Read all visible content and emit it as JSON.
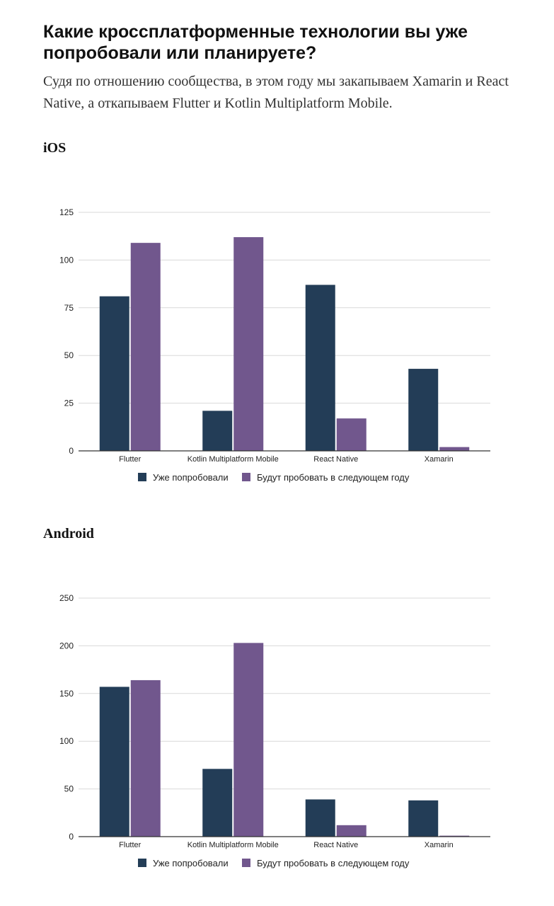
{
  "page": {
    "title": "Какие кроссплатформенные технологии вы уже попробовали или планируете?",
    "subtitle": "Судя по отношению сообщества, в этом году мы закапываем Xamarin и React Native, а откапываем Flutter и Kotlin Multiplatform Mobile."
  },
  "colors": {
    "tried": "#233d57",
    "planned": "#71578d",
    "grid": "#d9d9d9",
    "axis": "#333333"
  },
  "chart_data": [
    {
      "type": "bar",
      "title": "iOS",
      "categories": [
        "Flutter",
        "Kotlin Multiplatform Mobile",
        "React Native",
        "Xamarin"
      ],
      "series": [
        {
          "name": "Уже попробовали",
          "values": [
            81,
            21,
            87,
            43
          ]
        },
        {
          "name": "Будут пробовать в следующем году",
          "values": [
            109,
            112,
            17,
            2
          ]
        }
      ],
      "yticks": [
        0,
        25,
        50,
        75,
        100,
        125
      ],
      "ylim": [
        0,
        125
      ],
      "grid": true,
      "legend": "bottom"
    },
    {
      "type": "bar",
      "title": "Android",
      "categories": [
        "Flutter",
        "Kotlin Multiplatform Mobile",
        "React Native",
        "Xamarin"
      ],
      "series": [
        {
          "name": "Уже попробовали",
          "values": [
            157,
            71,
            39,
            38
          ]
        },
        {
          "name": "Будут пробовать в следующем году",
          "values": [
            164,
            203,
            12,
            1
          ]
        }
      ],
      "yticks": [
        0,
        50,
        100,
        150,
        200,
        250
      ],
      "ylim": [
        0,
        250
      ],
      "grid": true,
      "legend": "bottom"
    }
  ]
}
